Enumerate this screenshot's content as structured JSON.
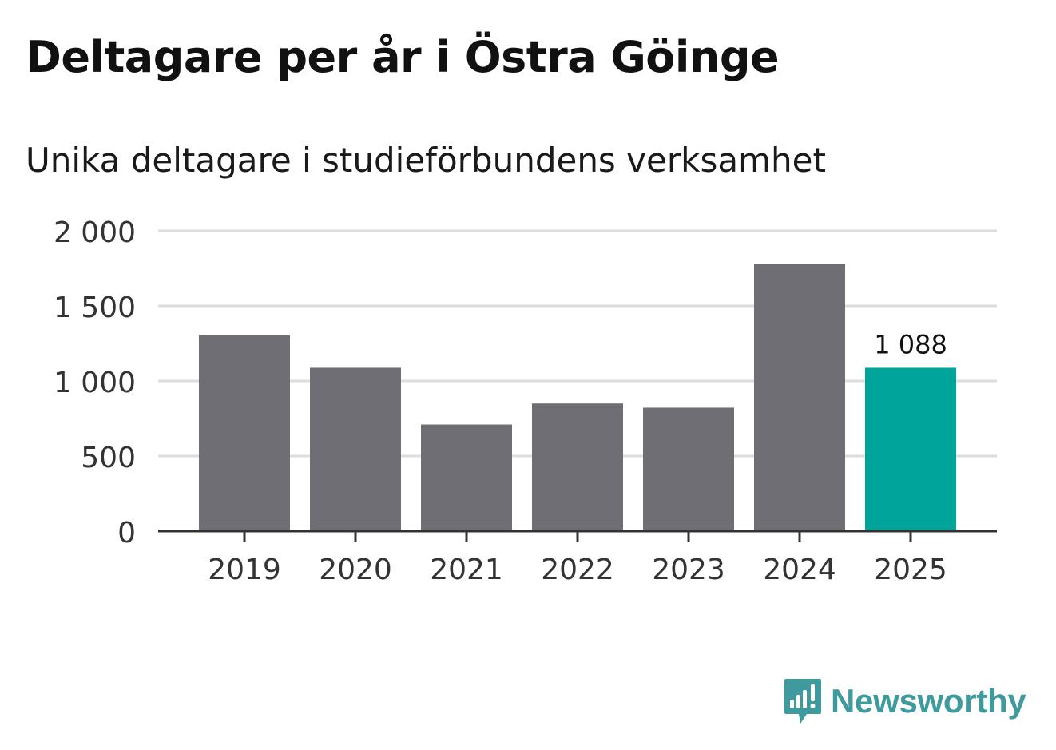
{
  "title": "Deltagare per år i Östra Göinge",
  "subtitle": "Unika deltagare i studieförbundens verksamhet",
  "brand": {
    "name": "Newsworthy",
    "color": "#3f9a9d",
    "icon": "newsworthy-logo-icon"
  },
  "colors": {
    "bar": "#6f6e74",
    "highlight": "#00a499",
    "grid": "#dddddd",
    "axis": "#333333",
    "tick_text": "#333333",
    "label_text": "#111111"
  },
  "chart_data": {
    "type": "bar",
    "title": "Deltagare per år i Östra Göinge",
    "subtitle": "Unika deltagare i studieförbundens verksamhet",
    "categories": [
      "2019",
      "2020",
      "2021",
      "2022",
      "2023",
      "2024",
      "2025"
    ],
    "values": [
      1305,
      1088,
      710,
      850,
      822,
      1780,
      1088
    ],
    "highlight_index": 6,
    "data_labels": [
      {
        "index": 6,
        "text": "1 088"
      }
    ],
    "ylim": [
      0,
      2000
    ],
    "yticks": [
      0,
      500,
      1000,
      1500,
      2000
    ],
    "ytick_labels": [
      "0",
      "500",
      "1 000",
      "1 500",
      "2 000"
    ],
    "xlabel": "",
    "ylabel": "",
    "grid": true,
    "legend": "none"
  }
}
